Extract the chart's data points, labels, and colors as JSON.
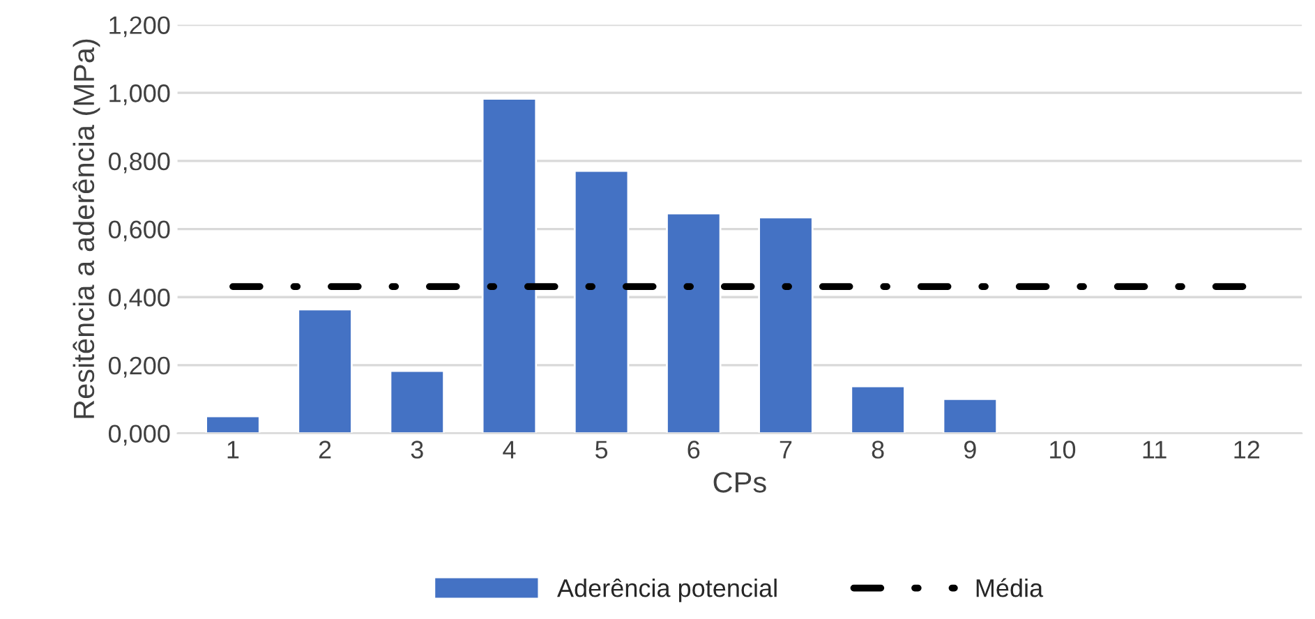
{
  "chart_data": {
    "type": "bar",
    "xlabel": "CPs",
    "ylabel": "Resitência a aderência (MPa)",
    "categories": [
      "1",
      "2",
      "3",
      "4",
      "5",
      "6",
      "7",
      "8",
      "9",
      "10",
      "11",
      "12"
    ],
    "series": [
      {
        "name": "Aderência potencial",
        "color": "#4472c4",
        "values": [
          0.05,
          0.364,
          0.183,
          0.983,
          0.771,
          0.646,
          0.634,
          0.138,
          0.101,
          null,
          null,
          null
        ]
      },
      {
        "name": "Média",
        "type": "line",
        "color": "#000000",
        "line_style": "dashdot",
        "values": [
          0.431,
          0.431,
          0.431,
          0.431,
          0.431,
          0.431,
          0.431,
          0.431,
          0.431,
          0.431,
          0.431,
          0.431
        ]
      }
    ],
    "ylim": [
      0,
      1.2
    ],
    "yticks": [
      {
        "value": 0,
        "label": "0,000"
      },
      {
        "value": 0.2,
        "label": "0,200"
      },
      {
        "value": 0.4,
        "label": "0,400"
      },
      {
        "value": 0.6,
        "label": "0,600"
      },
      {
        "value": 0.8,
        "label": "0,800"
      },
      {
        "value": 1.0,
        "label": "1,000"
      },
      {
        "value": 1.2,
        "label": "1,200"
      }
    ],
    "grid": "y",
    "legend": "bottom",
    "marker": "none"
  }
}
